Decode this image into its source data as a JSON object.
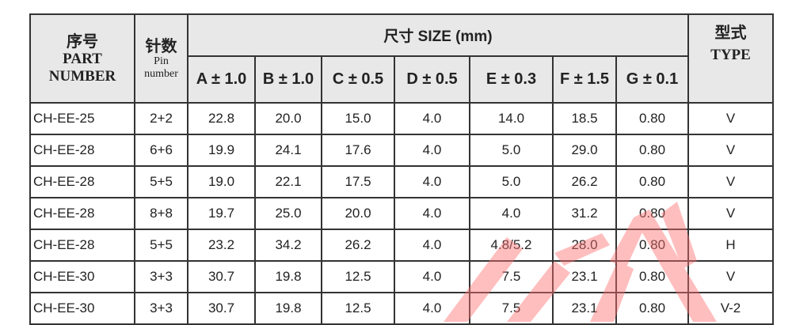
{
  "header": {
    "part_cn": "序号",
    "part_en1": "PART",
    "part_en2": "NUMBER",
    "pin_cn": "针数",
    "pin_en1": "Pin",
    "pin_en2": "number",
    "size": "尺寸 SIZE (mm)",
    "type_cn": "型式",
    "type_en": "TYPE",
    "dims": [
      "A ± 1.0",
      "B ± 1.0",
      "C ± 0.5",
      "D ± 0.5",
      "E ± 0.3",
      "F ± 1.5",
      "G ± 0.1"
    ]
  },
  "rows": [
    [
      "CH-EE-25",
      "2+2",
      "22.8",
      "20.0",
      "15.0",
      "4.0",
      "14.0",
      "18.5",
      "0.80",
      "V"
    ],
    [
      "CH-EE-28",
      "6+6",
      "19.9",
      "24.1",
      "17.6",
      "4.0",
      "5.0",
      "29.0",
      "0.80",
      "V"
    ],
    [
      "CH-EE-28",
      "5+5",
      "19.0",
      "22.1",
      "17.5",
      "4.0",
      "5.0",
      "26.2",
      "0.80",
      "V"
    ],
    [
      "CH-EE-28",
      "8+8",
      "19.7",
      "25.0",
      "20.0",
      "4.0",
      "4.0",
      "31.2",
      "0.80",
      "V"
    ],
    [
      "CH-EE-28",
      "5+5",
      "23.2",
      "34.2",
      "26.2",
      "4.0",
      "4.8/5.2",
      "28.0",
      "0.80",
      "H"
    ],
    [
      "CH-EE-30",
      "3+3",
      "30.7",
      "19.8",
      "12.5",
      "4.0",
      "7.5",
      "23.1",
      "0.80",
      "V"
    ],
    [
      "CH-EE-30",
      "3+3",
      "30.7",
      "19.8",
      "12.5",
      "4.0",
      "7.5",
      "23.1",
      "0.80",
      "V-2"
    ]
  ],
  "watermark_color": "#ff8080"
}
